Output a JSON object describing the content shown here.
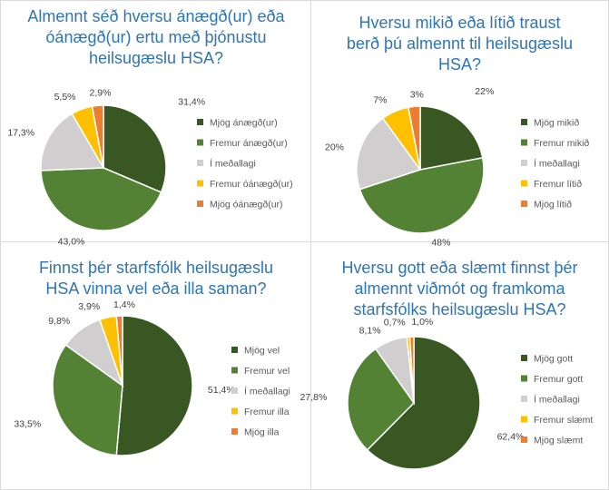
{
  "chart_data": [
    {
      "type": "pie",
      "title": "Almennt séð hversu ánægð(ur) eða\nóánægð(ur) ertu með þjónustu\nheilsugæslu HSA?",
      "categories": [
        "Mjög ánægð(ur)",
        "Fremur ánægð(ur)",
        "Í meðallagi",
        "Fremur óánægð(ur)",
        "Mjög óánægð(ur)"
      ],
      "values": [
        31.4,
        43.0,
        17.3,
        5.5,
        2.9
      ],
      "data_labels": [
        "31,4%",
        "43,0%",
        "17,3%",
        "5,5%",
        "2,9%"
      ],
      "colors": [
        "#385723",
        "#548235",
        "#d0cece",
        "#ffc000",
        "#ed7d31"
      ],
      "legend": "right"
    },
    {
      "type": "pie",
      "title": "Hversu mikið eða lítið traust\nberð þú almennt til heilsugæslu\nHSA?",
      "categories": [
        "Mjög mikið",
        "Fremur mikið",
        "Í meðallagi",
        "Fremur lítið",
        "Mjög lítið"
      ],
      "values": [
        22,
        48,
        20,
        7,
        3
      ],
      "data_labels": [
        "22%",
        "48%",
        "20%",
        "7%",
        "3%"
      ],
      "colors": [
        "#385723",
        "#548235",
        "#d0cece",
        "#ffc000",
        "#ed7d31"
      ],
      "legend": "right"
    },
    {
      "type": "pie",
      "title": "Finnst þér starfsfólk heilsugæslu\nHSA vinna vel eða illa saman?",
      "categories": [
        "Mjög vel",
        "Fremur vel",
        "Í meðallagi",
        "Fremur illa",
        "Mjög illa"
      ],
      "values": [
        51.4,
        33.5,
        9.8,
        3.9,
        1.4
      ],
      "data_labels": [
        "51,4%",
        "33,5%",
        "9,8%",
        "3,9%",
        "1,4%"
      ],
      "colors": [
        "#385723",
        "#548235",
        "#d0cece",
        "#ffc000",
        "#ed7d31"
      ],
      "legend": "right"
    },
    {
      "type": "pie",
      "title": "Hversu gott eða slæmt finnst þér\nalmennt viðmót og framkoma\nstarfsfólks heilsugæslu HSA?",
      "categories": [
        "Mjög gott",
        "Fremur gott",
        "Í meðallagi",
        "Fremur slæmt",
        "Mjög slæmt"
      ],
      "values": [
        62.4,
        27.8,
        8.1,
        0.7,
        1.0
      ],
      "data_labels": [
        "62,4%",
        "27,8%",
        "8,1%",
        "0,7%",
        "1,0%"
      ],
      "colors": [
        "#385723",
        "#548235",
        "#d0cece",
        "#ffc000",
        "#ed7d31"
      ],
      "legend": "right"
    }
  ]
}
